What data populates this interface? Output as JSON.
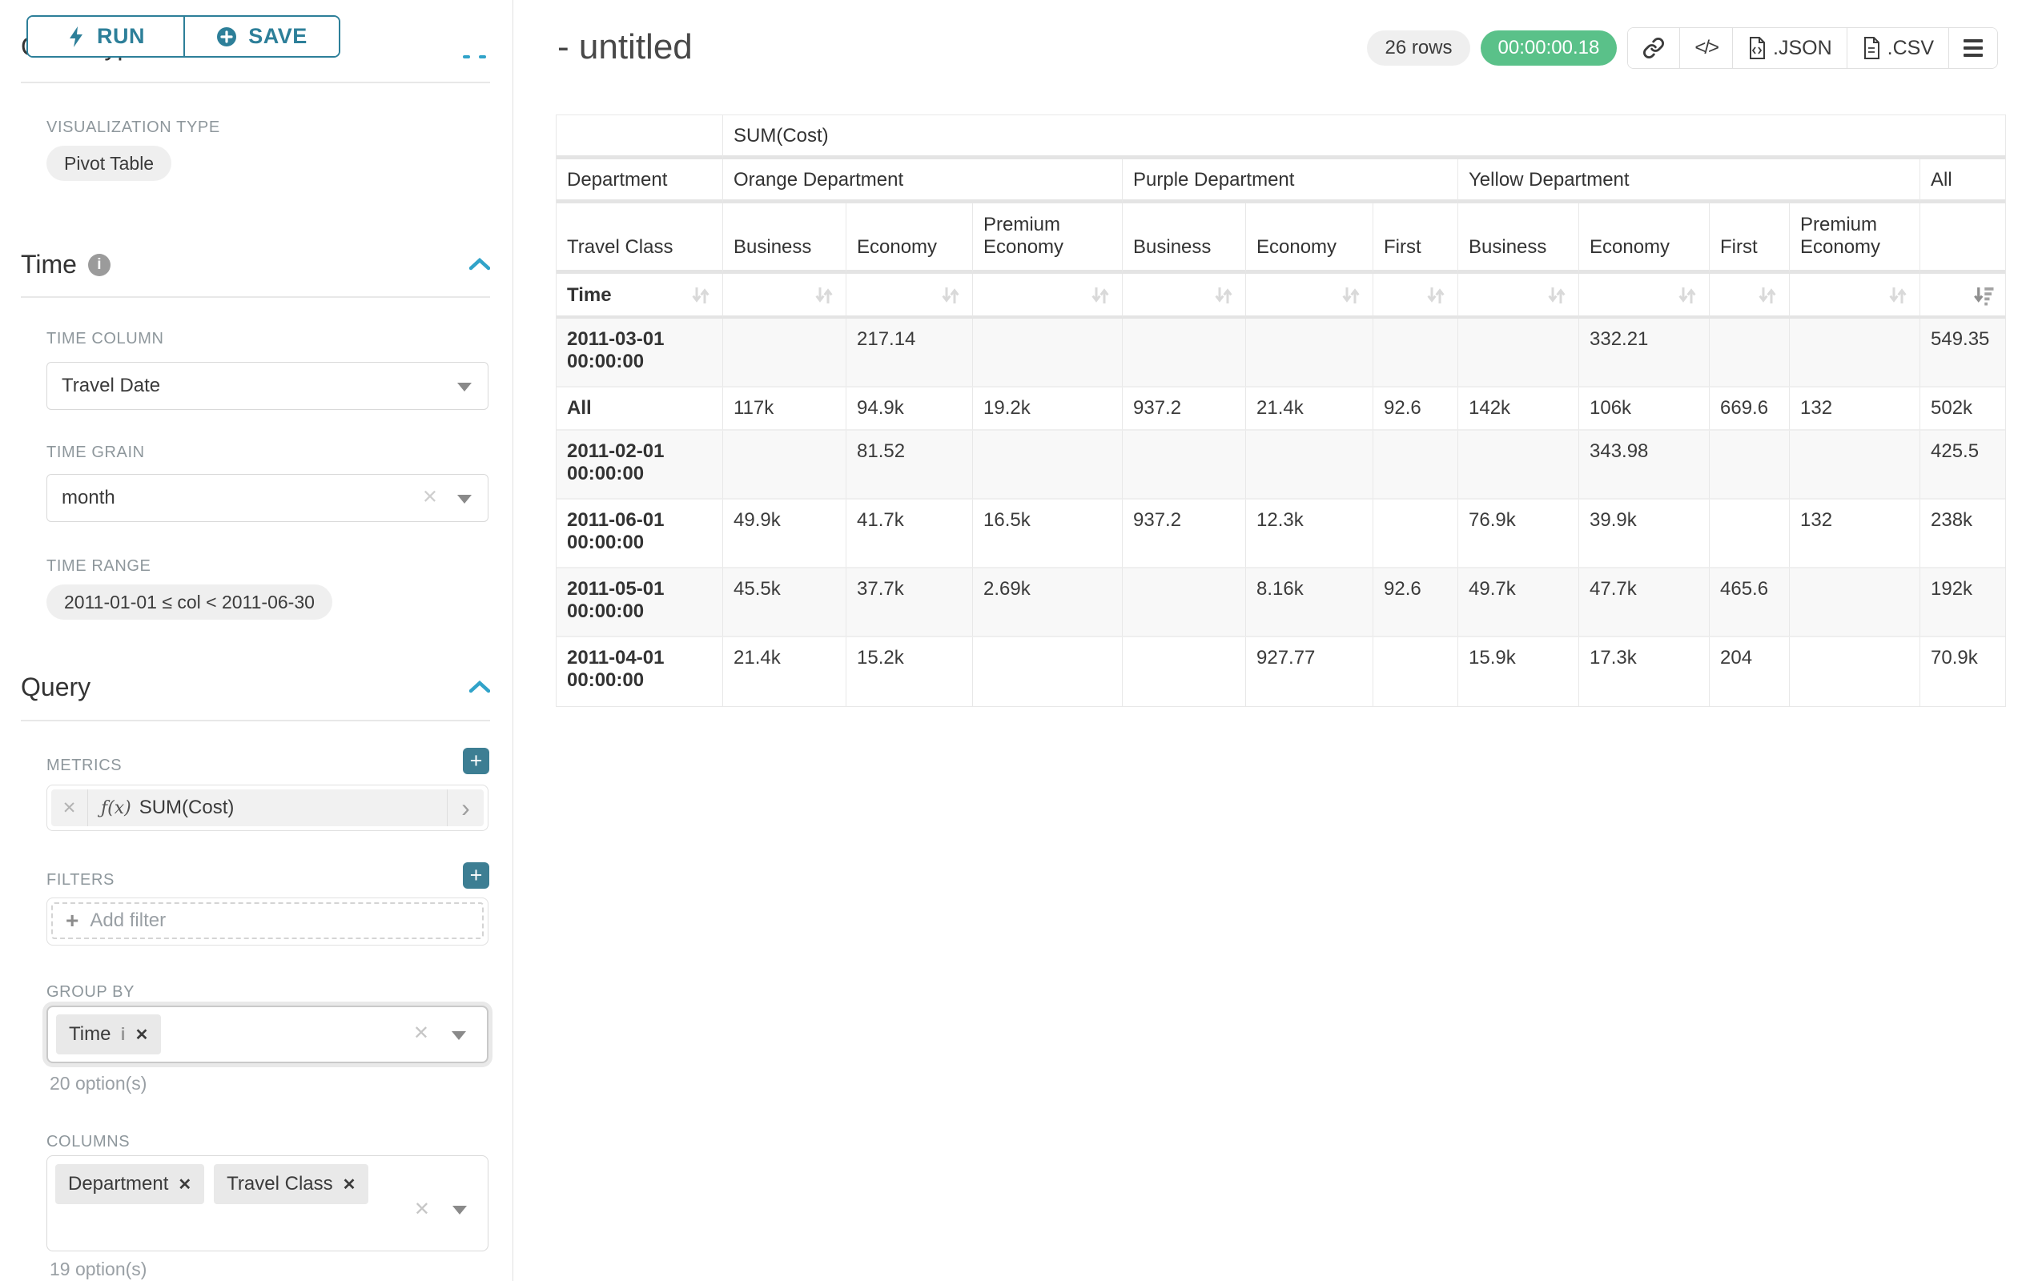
{
  "colors": {
    "accent_teal": "#2d7f99",
    "icon_teal": "#3d7e93",
    "chevron_blue": "#31a3c9",
    "success_green": "#5ac189"
  },
  "sidebar": {
    "run_label": "RUN",
    "save_label": "SAVE",
    "chart_type_heading": "Chart Type",
    "viz_type_label": "VISUALIZATION TYPE",
    "viz_type_value": "Pivot Table",
    "time_section": {
      "title": "Time",
      "time_column_label": "TIME COLUMN",
      "time_column_value": "Travel Date",
      "time_grain_label": "TIME GRAIN",
      "time_grain_value": "month",
      "time_range_label": "TIME RANGE",
      "time_range_value": "2011-01-01 ≤ col < 2011-06-30"
    },
    "query_section": {
      "title": "Query",
      "metrics_label": "METRICS",
      "metric_fx": "ƒ(x)",
      "metric_chip": "SUM(Cost)",
      "filters_label": "FILTERS",
      "add_filter_placeholder": "Add filter",
      "group_by_label": "GROUP BY",
      "group_by_chips": [
        "Time"
      ],
      "group_by_options_hint": "20 option(s)",
      "columns_label": "COLUMNS",
      "columns_chips": [
        "Department",
        "Travel Class"
      ],
      "columns_options_hint": "19 option(s)"
    }
  },
  "header": {
    "title": "- untitled",
    "row_count": "26 rows",
    "query_duration": "00:00:00.18",
    "json_label": ".JSON",
    "csv_label": ".CSV"
  },
  "main": {
    "table": {
      "metric_header": "SUM(Cost)",
      "dim1_label": "Department",
      "dim2_label": "Travel Class",
      "row_dim_label": "Time",
      "col_groups": [
        {
          "label": "Orange Department",
          "cols": [
            "Business",
            "Economy",
            "Premium Economy"
          ]
        },
        {
          "label": "Purple Department",
          "cols": [
            "Business",
            "Economy",
            "First"
          ]
        },
        {
          "label": "Yellow Department",
          "cols": [
            "Business",
            "Economy",
            "First",
            "Premium Economy"
          ]
        },
        {
          "label": "All",
          "cols": [
            ""
          ]
        }
      ],
      "sorted_column": "All",
      "sorted_value_col_index": 10,
      "rows": [
        {
          "label": "2011-03-01 00:00:00",
          "values": [
            "",
            "217.14",
            "",
            "",
            "",
            "",
            "",
            "332.21",
            "",
            "",
            "549.35"
          ]
        },
        {
          "label": "All",
          "values": [
            "117k",
            "94.9k",
            "19.2k",
            "937.2",
            "21.4k",
            "92.6",
            "142k",
            "106k",
            "669.6",
            "132",
            "502k"
          ]
        },
        {
          "label": "2011-02-01 00:00:00",
          "values": [
            "",
            "81.52",
            "",
            "",
            "",
            "",
            "",
            "343.98",
            "",
            "",
            "425.5"
          ]
        },
        {
          "label": "2011-06-01 00:00:00",
          "values": [
            "49.9k",
            "41.7k",
            "16.5k",
            "937.2",
            "12.3k",
            "",
            "76.9k",
            "39.9k",
            "",
            "132",
            "238k"
          ]
        },
        {
          "label": "2011-05-01 00:00:00",
          "values": [
            "45.5k",
            "37.7k",
            "2.69k",
            "",
            "8.16k",
            "92.6",
            "49.7k",
            "47.7k",
            "465.6",
            "",
            "192k"
          ]
        },
        {
          "label": "2011-04-01 00:00:00",
          "values": [
            "21.4k",
            "15.2k",
            "",
            "",
            "927.77",
            "",
            "15.9k",
            "17.3k",
            "204",
            "",
            "70.9k"
          ]
        }
      ]
    }
  }
}
